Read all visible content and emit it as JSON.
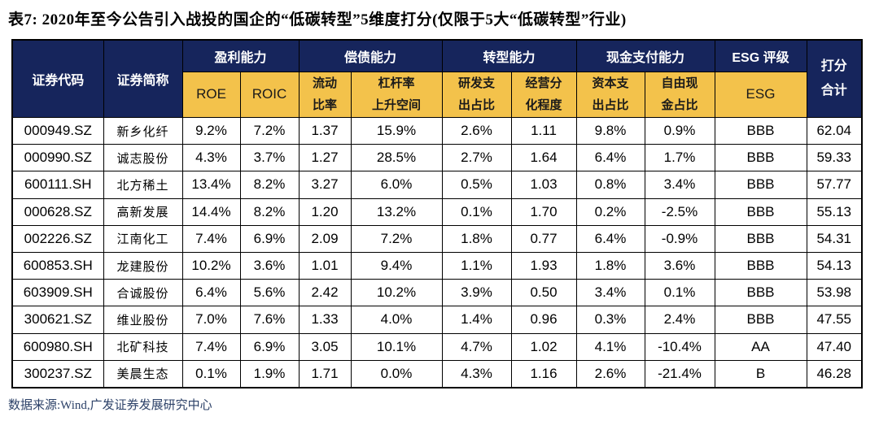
{
  "title": "表7:  2020年至今公告引入战投的国企的“低碳转型”5维度打分(仅限于5大“低碳转型”行业)",
  "footer": "数据来源:Wind,广发证券发展研究中心",
  "colors": {
    "header_navy": "#16255C",
    "header_gold": "#F3C24B",
    "grid_line": "#000000",
    "footer_text": "#2C4168",
    "title_text": "#000000"
  },
  "table": {
    "header": {
      "code": "证券代码",
      "name": "证券简称",
      "total": "打分\n合计",
      "groups": [
        {
          "label": "盈利能力"
        },
        {
          "label": "偿债能力"
        },
        {
          "label": "转型能力"
        },
        {
          "label": "现金支付能力"
        },
        {
          "label": "ESG 评级"
        }
      ],
      "subs": [
        "ROE",
        "ROIC",
        "流动\n比率",
        "杠杆率\n上升空间",
        "研发支\n出占比",
        "经营分\n化程度",
        "资本支\n出占比",
        "自由现\n金占比",
        "ESG"
      ]
    },
    "column_keys": [
      "code",
      "name",
      "roe",
      "roic",
      "current-ratio",
      "leverage-upside",
      "rd-expense-ratio",
      "operating-divergence",
      "capex-ratio",
      "fcf-ratio",
      "esg-rating",
      "total-score"
    ],
    "rows": [
      [
        "000949.SZ",
        "新乡化纤",
        "9.2%",
        "7.2%",
        "1.37",
        "15.9%",
        "2.6%",
        "1.11",
        "9.8%",
        "0.9%",
        "BBB",
        "62.04"
      ],
      [
        "000990.SZ",
        "诚志股份",
        "4.3%",
        "3.7%",
        "1.27",
        "28.5%",
        "2.7%",
        "1.64",
        "6.4%",
        "1.7%",
        "BBB",
        "59.33"
      ],
      [
        "600111.SH",
        "北方稀土",
        "13.4%",
        "8.2%",
        "3.27",
        "6.0%",
        "0.5%",
        "1.03",
        "0.8%",
        "3.4%",
        "BBB",
        "57.77"
      ],
      [
        "000628.SZ",
        "高新发展",
        "14.4%",
        "8.2%",
        "1.20",
        "13.2%",
        "0.1%",
        "1.70",
        "0.2%",
        "-2.5%",
        "BBB",
        "55.13"
      ],
      [
        "002226.SZ",
        "江南化工",
        "7.4%",
        "6.9%",
        "2.09",
        "7.2%",
        "1.8%",
        "0.77",
        "6.4%",
        "-0.9%",
        "BBB",
        "54.31"
      ],
      [
        "600853.SH",
        "龙建股份",
        "10.2%",
        "3.6%",
        "1.01",
        "9.4%",
        "1.1%",
        "1.93",
        "1.8%",
        "3.6%",
        "BBB",
        "54.13"
      ],
      [
        "603909.SH",
        "合诚股份",
        "6.4%",
        "5.6%",
        "2.42",
        "10.2%",
        "3.9%",
        "0.50",
        "3.4%",
        "0.1%",
        "BBB",
        "53.98"
      ],
      [
        "300621.SZ",
        "维业股份",
        "7.0%",
        "7.6%",
        "1.33",
        "4.0%",
        "1.4%",
        "0.96",
        "0.3%",
        "2.4%",
        "BBB",
        "47.55"
      ],
      [
        "600980.SH",
        "北矿科技",
        "7.4%",
        "6.9%",
        "3.05",
        "10.1%",
        "4.7%",
        "1.02",
        "4.1%",
        "-10.4%",
        "AA",
        "47.40"
      ],
      [
        "300237.SZ",
        "美晨生态",
        "0.1%",
        "1.9%",
        "1.71",
        "0.0%",
        "4.3%",
        "1.16",
        "2.6%",
        "-21.4%",
        "B",
        "46.28"
      ]
    ]
  }
}
